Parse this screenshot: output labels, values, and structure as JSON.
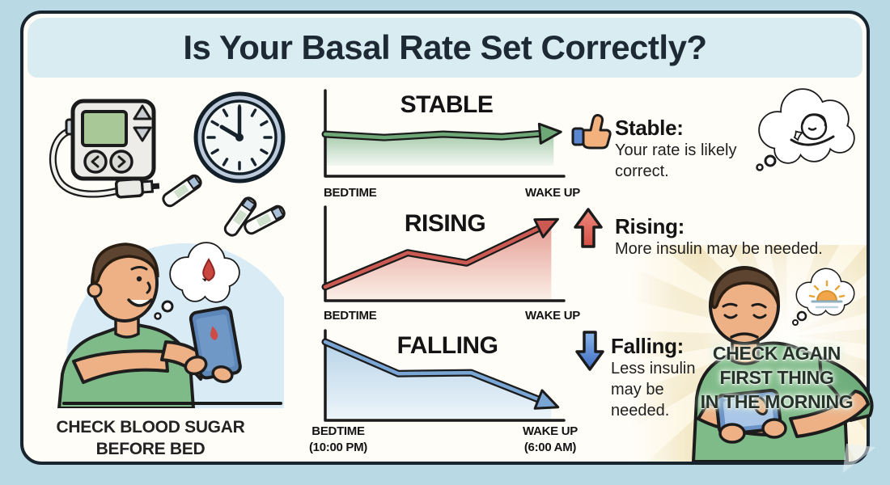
{
  "title": "Is Your Basal Rate Set Correctly?",
  "left_panel": {
    "clock_time": "10:00",
    "caption_lines": [
      "CHECK BLOOD SUGAR",
      "BEFORE BED"
    ],
    "icons": [
      "insulin-pump-icon",
      "clock-icon",
      "test-strips-icon",
      "person-checking-phone-illustration",
      "blood-drop-thought-cloud-icon"
    ]
  },
  "chart_data": [
    {
      "type": "line",
      "title": "STABLE",
      "trend": "stable",
      "x_start_label": "BEDTIME",
      "x_end_label": "WAKE UP",
      "x_start_sublabel": "",
      "x_end_sublabel": "",
      "color": "#6fa877",
      "fill_top": "#a3c9a8",
      "fill_bottom": "#f3f8f2",
      "points_norm": [
        [
          0,
          0.5
        ],
        [
          0.25,
          0.46
        ],
        [
          0.5,
          0.5
        ],
        [
          0.75,
          0.47
        ],
        [
          0.97,
          0.52
        ]
      ]
    },
    {
      "type": "line",
      "title": "RISING",
      "trend": "rising",
      "x_start_label": "BEDTIME",
      "x_end_label": "WAKE UP",
      "x_start_sublabel": "",
      "x_end_sublabel": "",
      "color": "#cd5a52",
      "fill_top": "#e49a90",
      "fill_bottom": "#faeee6",
      "points_norm": [
        [
          0,
          0.15
        ],
        [
          0.35,
          0.52
        ],
        [
          0.6,
          0.41
        ],
        [
          0.96,
          0.85
        ]
      ]
    },
    {
      "type": "line",
      "title": "FALLING",
      "trend": "falling",
      "x_start_label": "BEDTIME",
      "x_end_label": "WAKE UP",
      "x_start_sublabel": "(10:00 PM)",
      "x_end_sublabel": "(6:00 AM)",
      "color": "#7aa6d6",
      "fill_top": "#b8d4e9",
      "fill_bottom": "#ecf4f9",
      "points_norm": [
        [
          0,
          0.89
        ],
        [
          0.31,
          0.53
        ],
        [
          0.62,
          0.54
        ],
        [
          0.96,
          0.18
        ]
      ]
    }
  ],
  "annotations": {
    "stable": {
      "icon": "thumbs-up-icon",
      "heading": "Stable:",
      "lines": [
        "Your rate is likely",
        "correct."
      ]
    },
    "rising": {
      "icon": "arrow-up-icon",
      "heading": "Rising:",
      "lines": [
        "More insulin may be needed."
      ]
    },
    "falling": {
      "icon": "arrow-down-icon",
      "heading": "Falling:",
      "lines": [
        "Less insulin",
        "may be",
        "needed."
      ]
    },
    "morning": {
      "icon": "sunrise-thought-cloud-icon",
      "lines": [
        "CHECK AGAIN",
        "FIRST THING",
        "IN THE MORNING"
      ]
    },
    "stable_thought": {
      "icon": "sleeping-person-thought-cloud-icon"
    }
  },
  "colors": {
    "background": "#b9d9e5",
    "panel": "#fffdf8",
    "panel_border": "#18242e",
    "title_band": "#d8ecf1",
    "title_text": "#1d2a35",
    "axis": "#1b1b1b",
    "shirt_green": "#7fba89",
    "skin": "#eeb186",
    "hair": "#5d4430",
    "phone_blue": "#5d87b8",
    "stable_green": "#6fa877",
    "rising_red": "#cd5a52",
    "falling_blue": "#7aa6d6"
  }
}
